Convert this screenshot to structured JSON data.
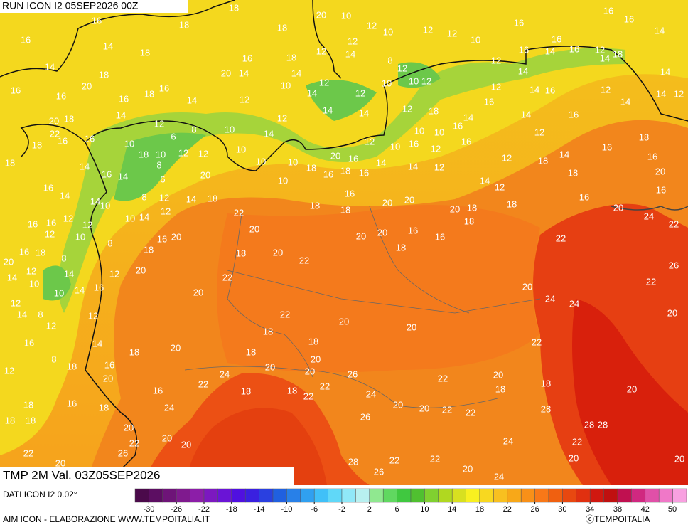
{
  "header": {
    "title": "RUN ICON I2 05SEP2026 00Z"
  },
  "map": {
    "subtitle": "TMP 2M Val. 03Z05SEP2026",
    "labels": [
      18,
      20,
      16,
      18,
      18,
      16,
      14,
      18,
      16,
      18,
      14,
      18,
      20,
      20,
      14,
      16,
      16,
      16,
      18,
      16,
      14,
      20,
      18,
      14,
      22,
      18,
      16,
      16,
      10,
      12,
      6,
      8,
      10,
      14,
      18,
      14,
      16,
      14,
      18,
      10,
      12,
      12,
      20,
      8,
      6,
      16,
      14,
      14,
      10,
      8,
      12,
      14,
      18,
      12,
      16,
      16,
      12,
      12,
      10,
      14,
      8,
      10,
      16,
      20,
      12,
      16,
      18,
      8,
      18,
      20,
      12,
      14,
      12,
      20,
      14,
      10,
      10,
      14,
      16,
      20,
      12,
      14,
      8,
      12,
      12,
      14,
      16,
      12,
      8,
      18,
      16,
      20,
      20,
      18,
      16,
      18,
      16,
      18,
      18,
      18,
      20,
      24,
      22,
      26,
      20,
      20,
      22,
      20,
      22,
      20,
      18,
      20,
      22,
      22,
      22,
      20,
      20,
      18,
      18,
      18,
      20,
      20,
      20,
      26,
      24,
      22,
      18,
      18,
      22,
      22,
      24,
      22,
      20,
      18,
      18,
      20,
      20,
      22,
      22,
      26,
      28,
      24,
      28,
      28,
      22,
      20,
      20,
      20,
      22,
      20,
      24,
      22,
      26,
      28,
      22,
      20,
      24,
      24,
      22,
      26,
      20,
      22,
      20,
      24,
      22,
      20,
      20,
      18,
      16,
      16,
      18,
      18,
      16,
      20,
      20,
      20,
      18,
      18,
      18,
      16,
      16,
      20,
      16,
      16,
      18,
      18,
      14,
      18,
      14,
      12,
      16,
      12,
      14,
      14,
      16,
      18,
      16,
      20,
      16,
      18,
      10,
      10,
      10,
      10,
      12,
      14,
      14,
      12,
      12,
      10,
      14,
      12,
      14,
      12,
      12,
      14,
      8,
      10,
      10,
      12,
      12,
      10,
      12,
      10,
      12,
      12,
      18,
      16,
      10,
      16,
      14,
      12,
      10,
      10,
      12,
      12,
      10,
      12,
      14,
      14,
      14,
      16,
      16,
      12,
      14,
      18,
      16,
      16,
      14,
      14,
      14,
      12,
      12,
      14,
      16,
      16,
      12,
      16,
      14,
      12,
      12,
      16,
      16
    ]
  },
  "legend": {
    "source": "DATI ICON I2 0.02°",
    "ticks": [
      -30,
      -26,
      -22,
      -18,
      -14,
      -10,
      -6,
      -2,
      2,
      6,
      10,
      14,
      18,
      22,
      26,
      30,
      34,
      38,
      42,
      50
    ],
    "lim": [
      -32,
      48
    ],
    "colors": [
      "#4b0a4b",
      "#5c0e62",
      "#6e1478",
      "#7f1a8e",
      "#8c1ea8",
      "#7c18c0",
      "#6a14d6",
      "#5010e0",
      "#3a20e0",
      "#2a40e0",
      "#2060e0",
      "#2880e8",
      "#30a0f0",
      "#40c0f8",
      "#60d8f8",
      "#90e8f8",
      "#b8f0f0",
      "#90e890",
      "#60d860",
      "#40c840",
      "#50c030",
      "#80d030",
      "#b0d820",
      "#d8e020",
      "#f8f020",
      "#f8d820",
      "#f8c020",
      "#f8a818",
      "#f89018",
      "#f87818",
      "#f06010",
      "#e84810",
      "#e03010",
      "#d01810",
      "#c01010",
      "#c01050",
      "#d02880",
      "#e050a8",
      "#f078c8",
      "#f8a0e0"
    ]
  },
  "footer": {
    "credit": "AIM ICON - ELABORAZIONE WWW.TEMPOITALIA.IT",
    "copyright": "ⓒTEMPOITALIA"
  }
}
